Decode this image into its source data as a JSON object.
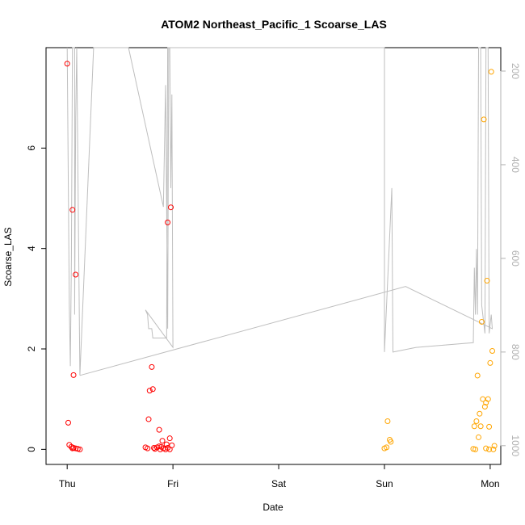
{
  "chart_data": {
    "type": "scatter",
    "title": "ATOM2 Northeast_Pacific_1 Scoarse_LAS",
    "xlabel": "Date",
    "ylabel": "Scoarse_LAS",
    "x_ticks": [
      "Thu",
      "Fri",
      "Sat",
      "Sun",
      "Mon"
    ],
    "xlim": [
      -0.2,
      4.1
    ],
    "ylim": [
      -0.3,
      8.0
    ],
    "y_ticks": [
      0,
      2,
      4,
      6
    ],
    "y2_ticks": [
      200,
      400,
      600,
      800,
      1000
    ],
    "y2lim": [
      1040,
      150
    ],
    "colors": {
      "red": "#ff0000",
      "orange": "#ffa500",
      "line": "#bebebe"
    },
    "series": [
      {
        "color": "red",
        "points": [
          [
            0.0,
            7.68
          ],
          [
            0.05,
            4.77
          ],
          [
            0.08,
            3.48
          ],
          [
            0.06,
            1.48
          ],
          [
            0.01,
            0.53
          ],
          [
            0.02,
            0.09
          ],
          [
            0.04,
            0.05
          ],
          [
            0.06,
            0.03
          ],
          [
            0.08,
            0.02
          ],
          [
            0.1,
            0.01
          ],
          [
            0.12,
            0.0
          ],
          [
            0.05,
            0.02
          ],
          [
            0.95,
            4.52
          ],
          [
            0.98,
            4.82
          ],
          [
            0.8,
            1.64
          ],
          [
            0.81,
            1.2
          ],
          [
            0.78,
            1.17
          ],
          [
            0.77,
            0.6
          ],
          [
            0.87,
            0.39
          ],
          [
            0.9,
            0.17
          ],
          [
            0.97,
            0.22
          ],
          [
            0.74,
            0.04
          ],
          [
            0.76,
            0.02
          ],
          [
            0.83,
            0.01
          ],
          [
            0.85,
            0.04
          ],
          [
            0.87,
            0.06
          ],
          [
            0.89,
            0.05
          ],
          [
            0.91,
            0.02
          ],
          [
            0.93,
            0.0
          ],
          [
            0.95,
            0.03
          ],
          [
            0.97,
            0.0
          ],
          [
            0.99,
            0.08
          ],
          [
            0.88,
            0.0
          ],
          [
            0.82,
            0.03
          ],
          [
            0.94,
            0.1
          ]
        ]
      },
      {
        "color": "orange",
        "points": [
          [
            3.03,
            0.56
          ],
          [
            3.05,
            0.19
          ],
          [
            3.06,
            0.15
          ],
          [
            3.0,
            0.02
          ],
          [
            3.02,
            0.04
          ],
          [
            3.84,
            0.01
          ],
          [
            3.86,
            0.0
          ],
          [
            3.88,
            1.47
          ],
          [
            3.9,
            0.71
          ],
          [
            3.91,
            0.46
          ],
          [
            3.92,
            2.54
          ],
          [
            3.94,
            6.57
          ],
          [
            3.95,
            0.85
          ],
          [
            3.96,
            0.93
          ],
          [
            3.93,
            1.0
          ],
          [
            3.97,
            3.36
          ],
          [
            3.98,
            1.0
          ],
          [
            3.99,
            0.45
          ],
          [
            4.0,
            1.72
          ],
          [
            4.01,
            7.52
          ],
          [
            4.02,
            1.96
          ],
          [
            4.03,
            0.0
          ],
          [
            4.04,
            0.07
          ],
          [
            3.87,
            0.56
          ],
          [
            3.89,
            0.24
          ],
          [
            3.96,
            0.02
          ],
          [
            3.99,
            0.0
          ],
          [
            3.85,
            0.46
          ]
        ]
      }
    ],
    "depth_line": [
      [
        0.0,
        150
      ],
      [
        0.02,
        700
      ],
      [
        0.03,
        830
      ],
      [
        0.04,
        600
      ],
      [
        0.05,
        150
      ],
      [
        0.07,
        150
      ],
      [
        0.07,
        720
      ],
      [
        0.08,
        300
      ],
      [
        0.09,
        150
      ],
      [
        0.12,
        850
      ],
      [
        0.25,
        150
      ],
      [
        0.3,
        150
      ],
      [
        0.58,
        150
      ],
      [
        0.91,
        490
      ],
      [
        0.93,
        230
      ],
      [
        0.95,
        750
      ],
      [
        0.96,
        150
      ],
      [
        0.97,
        150
      ],
      [
        0.98,
        450
      ],
      [
        0.99,
        250
      ],
      [
        1.0,
        790
      ],
      [
        0.74,
        710
      ],
      [
        0.76,
        720
      ],
      [
        0.77,
        750
      ],
      [
        0.8,
        750
      ],
      [
        0.81,
        770
      ],
      [
        0.94,
        770
      ],
      [
        0.95,
        150
      ],
      [
        3.0,
        150
      ],
      [
        3.0,
        800
      ],
      [
        3.06,
        500
      ],
      [
        3.07,
        450
      ],
      [
        3.08,
        800
      ],
      [
        3.3,
        790
      ],
      [
        3.84,
        780
      ],
      [
        3.85,
        620
      ],
      [
        3.86,
        720
      ],
      [
        3.87,
        580
      ],
      [
        3.88,
        720
      ],
      [
        3.89,
        150
      ],
      [
        3.91,
        150
      ],
      [
        3.92,
        700
      ],
      [
        3.95,
        760
      ],
      [
        3.96,
        150
      ],
      [
        3.98,
        150
      ],
      [
        3.99,
        760
      ],
      [
        4.01,
        720
      ],
      [
        4.02,
        750
      ],
      [
        3.2,
        660
      ],
      [
        0.12,
        850
      ]
    ]
  }
}
